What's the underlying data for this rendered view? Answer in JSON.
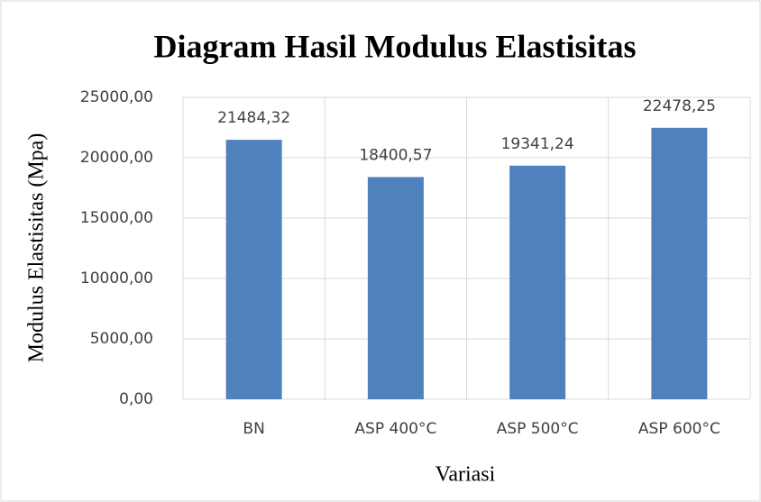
{
  "chart_data": {
    "type": "bar",
    "title": "Diagram Hasil Modulus Elastisitas",
    "y_label": "Modulus  Elastisitas  (Mpa)",
    "x_label": "Variasi",
    "categories": [
      "BN",
      "ASP 400°C",
      "ASP 500°C",
      "ASP 600°C"
    ],
    "values": [
      21484.32,
      18400.57,
      19341.24,
      22478.25
    ],
    "value_labels": [
      "21484,32",
      "18400,57",
      "19341,24",
      "22478,25"
    ],
    "color": "#4f81bd",
    "ylim": [
      0,
      25000
    ],
    "yticks": [
      {
        "value": 0,
        "label": "0,00"
      },
      {
        "value": 5000,
        "label": "5000,00"
      },
      {
        "value": 10000,
        "label": "10000,00"
      },
      {
        "value": 15000,
        "label": "15000,00"
      },
      {
        "value": 20000,
        "label": "20000,00"
      },
      {
        "value": 25000,
        "label": "25000,00"
      }
    ],
    "grid": true
  }
}
